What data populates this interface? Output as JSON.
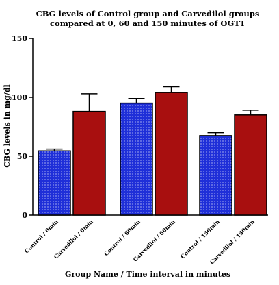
{
  "chart_data": {
    "type": "bar",
    "title_lines": [
      "CBG levels of Control group and Carvedilol groups",
      "compared at 0, 60 and 150 minutes of OGTT"
    ],
    "xlabel": "Group Name / Time interval in minutes",
    "ylabel": "CBG levels in mg/dl",
    "ylim": [
      0,
      150
    ],
    "yticks": [
      0,
      50,
      100,
      150
    ],
    "grid": false,
    "legend": "none",
    "categories": [
      "Control / 0min",
      "Carvedilol / 0min",
      "Control / 60min",
      "Carvedilol / 60min",
      "Control / 150min",
      "Carvedilol / 150min"
    ],
    "values": [
      54.5,
      88,
      95,
      104,
      67.5,
      85
    ],
    "error_high": [
      56,
      103,
      99,
      109,
      70,
      89
    ],
    "bar_styles": [
      "control",
      "carvedilol",
      "control",
      "carvedilol",
      "control",
      "carvedilol"
    ],
    "colors": {
      "control": "#1f2fd8",
      "control_dots": "#ffffff",
      "carvedilol": "#a80f0f",
      "outline": "#000000"
    }
  }
}
